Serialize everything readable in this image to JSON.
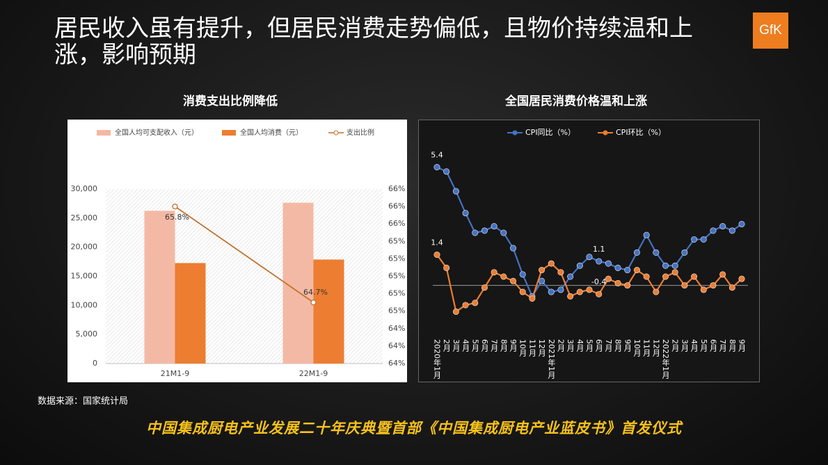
{
  "title": "居民收入虽有提升，但居民消费走势偏低，且物价持续温和上涨，影响预期",
  "logo": "GfK",
  "source": "数据来源：国家统计局",
  "footer": "中国集成厨电产业发展二十年庆典暨首部《中国集成厨电产业蓝皮书》首发仪式",
  "chart_data": [
    {
      "type": "bar",
      "title": "消费支出比例降低",
      "categories": [
        "21M1-9",
        "22M1-9"
      ],
      "series": [
        {
          "name": "全国人均可支配收入（元）",
          "color": "#f4b9a4",
          "values": [
            26265,
            27650
          ]
        },
        {
          "name": "全国人均消费（元）",
          "color": "#ed7d31",
          "values": [
            17275,
            17878
          ]
        },
        {
          "name": "支出比例",
          "type": "line",
          "axis": "y2",
          "color": "#c0722e",
          "values": [
            65.8,
            64.7
          ],
          "value_labels": [
            "65.8%",
            "64.7%"
          ]
        }
      ],
      "ylim": [
        0,
        30000
      ],
      "yticks": [
        0,
        {
          "value": 5000,
          "label": "5,000"
        },
        {
          "value": 10000,
          "label": "10,000"
        },
        {
          "value": 15000,
          "label": "15,000"
        },
        {
          "value": 20000,
          "label": "20,000"
        },
        {
          "value": 25000,
          "label": "25,000"
        },
        {
          "value": 30000,
          "label": "30,000"
        }
      ],
      "y2lim": [
        64.0,
        66.0
      ],
      "y2ticks": [
        {
          "value": 64.0,
          "label": "64%"
        },
        {
          "value": 64.2,
          "label": "64%"
        },
        {
          "value": 64.4,
          "label": "64%"
        },
        {
          "value": 64.6,
          "label": "65%"
        },
        {
          "value": 64.8,
          "label": "65%"
        },
        {
          "value": 65.0,
          "label": "65%"
        },
        {
          "value": 65.2,
          "label": "65%"
        },
        {
          "value": 65.4,
          "label": "65%"
        },
        {
          "value": 65.6,
          "label": "66%"
        },
        {
          "value": 65.8,
          "label": "66%"
        },
        {
          "value": 66.0,
          "label": "66%"
        }
      ],
      "legend": "top"
    },
    {
      "type": "line",
      "title": "全国居民消费价格温和上涨",
      "categories": [
        "2020年1月",
        "2月",
        "3月",
        "4月",
        "5月",
        "6月",
        "7月",
        "8月",
        "9月",
        "10月",
        "11月",
        "12月",
        "2021年1月",
        "2月",
        "3月",
        "4月",
        "5月",
        "6月",
        "7月",
        "8月",
        "9月",
        "10月",
        "11月",
        "12月",
        "2022年1月",
        "2月",
        "3月",
        "4月",
        "5月",
        "6月",
        "7月",
        "8月",
        "9月"
      ],
      "series": [
        {
          "name": "CPI同比（%）",
          "color": "#4472c4",
          "values": [
            5.4,
            5.2,
            4.3,
            3.3,
            2.4,
            2.5,
            2.7,
            2.4,
            1.7,
            0.5,
            -0.5,
            0.2,
            -0.3,
            -0.2,
            0.4,
            0.9,
            1.3,
            1.1,
            1.0,
            0.8,
            0.7,
            1.5,
            2.3,
            1.5,
            0.9,
            0.9,
            1.5,
            2.1,
            2.1,
            2.5,
            2.7,
            2.5,
            2.8
          ],
          "value_labels": [
            "5.4",
            null,
            null,
            null,
            null,
            null,
            null,
            null,
            null,
            null,
            null,
            null,
            null,
            null,
            null,
            null,
            null,
            "1.1",
            null,
            null,
            null,
            null,
            null,
            null,
            null,
            null,
            null,
            null,
            null,
            null,
            null,
            null,
            null
          ]
        },
        {
          "name": "CPI环比（%）",
          "color": "#ed7d31",
          "values": [
            1.4,
            0.8,
            -1.2,
            -0.9,
            -0.8,
            -0.1,
            0.6,
            0.4,
            0.2,
            -0.3,
            -0.6,
            0.7,
            1.0,
            0.6,
            -0.5,
            -0.3,
            -0.2,
            -0.4,
            0.3,
            0.1,
            0.0,
            0.7,
            0.4,
            -0.3,
            0.4,
            0.6,
            0.0,
            0.4,
            -0.2,
            0.0,
            0.5,
            -0.1,
            0.3
          ],
          "value_labels": [
            "1.4",
            null,
            null,
            null,
            null,
            null,
            null,
            null,
            null,
            null,
            null,
            null,
            null,
            null,
            null,
            null,
            null,
            "-0.4",
            null,
            null,
            null,
            null,
            null,
            null,
            null,
            null,
            null,
            null,
            null,
            null,
            null,
            null,
            null
          ]
        }
      ],
      "ylim": [
        -1.6,
        6.4
      ],
      "legend": "top"
    }
  ]
}
